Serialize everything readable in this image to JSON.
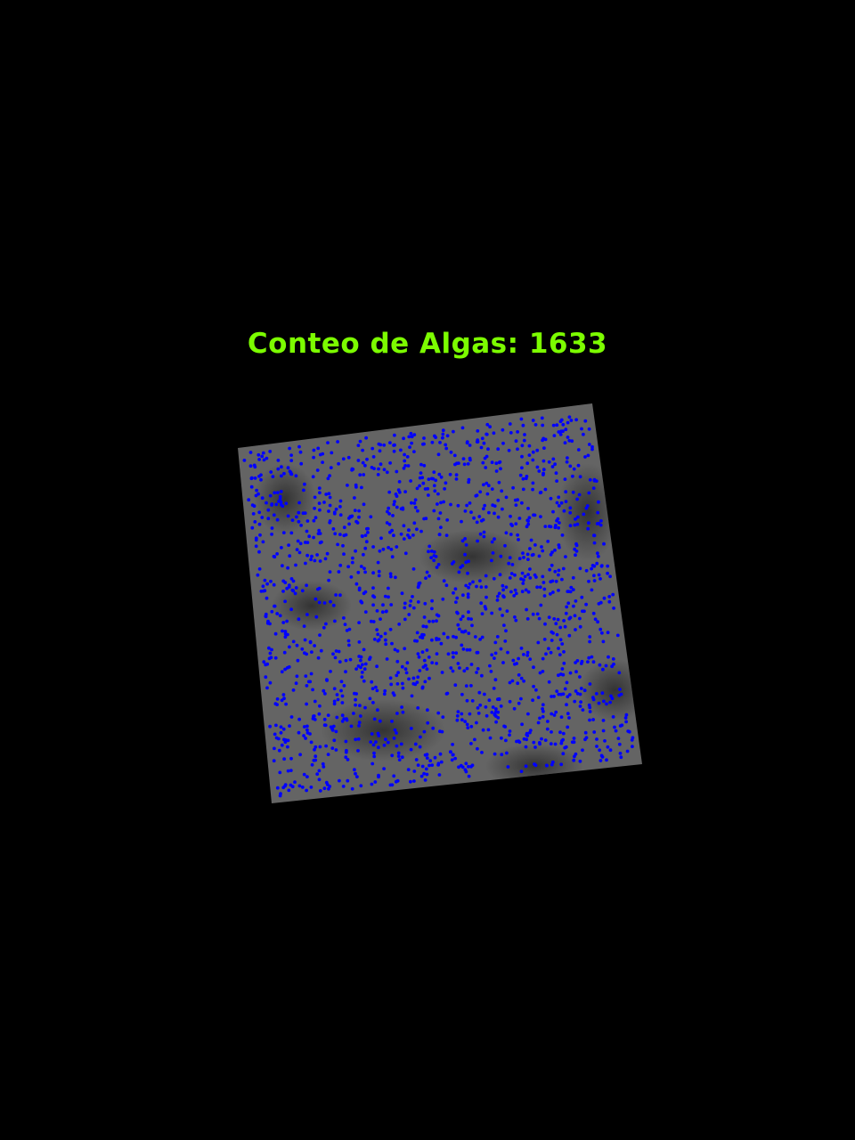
{
  "overlay": {
    "label": "Conteo de Algas: 1633",
    "count": 1633,
    "label_color": "#7CFC00",
    "marker_color": "#0000FF"
  },
  "image": {
    "description_name": "rotated-grayscale-micrograph",
    "tint": "#6a6a6a"
  }
}
